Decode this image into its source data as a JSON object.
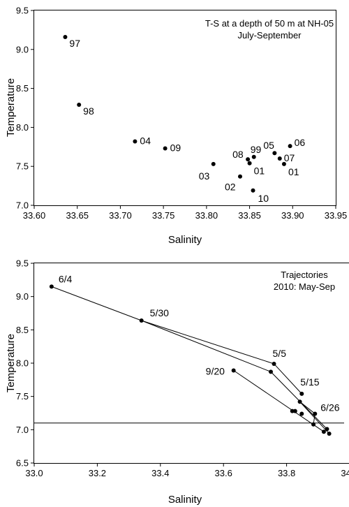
{
  "chart_data": [
    {
      "type": "scatter",
      "annotation_lines": [
        "T-S at a depth of 50 m at NH-05",
        "July-September"
      ],
      "xlabel": "Salinity",
      "ylabel": "Temperature",
      "xlim": [
        33.6,
        33.95
      ],
      "ylim": [
        7.0,
        9.5
      ],
      "xticks": [
        "33.60",
        "33.65",
        "33.70",
        "33.75",
        "33.80",
        "33.85",
        "33.90",
        "33.95"
      ],
      "yticks": [
        "7.0",
        "7.5",
        "8.0",
        "8.5",
        "9.0",
        "9.5"
      ],
      "grid": false,
      "points": [
        {
          "label": "97",
          "x": 33.636,
          "y": 9.16
        },
        {
          "label": "98",
          "x": 33.652,
          "y": 8.29
        },
        {
          "label": "04",
          "x": 33.717,
          "y": 7.82
        },
        {
          "label": "09",
          "x": 33.752,
          "y": 7.73
        },
        {
          "label": "03",
          "x": 33.808,
          "y": 7.53
        },
        {
          "label": "02",
          "x": 33.839,
          "y": 7.37
        },
        {
          "label": "10",
          "x": 33.854,
          "y": 7.19
        },
        {
          "label": "08",
          "x": 33.848,
          "y": 7.59
        },
        {
          "label": "01",
          "x": 33.85,
          "y": 7.54
        },
        {
          "label": "99",
          "x": 33.855,
          "y": 7.62
        },
        {
          "label": "05",
          "x": 33.879,
          "y": 7.67
        },
        {
          "label": "07",
          "x": 33.885,
          "y": 7.6
        },
        {
          "label": "01",
          "x": 33.89,
          "y": 7.53
        },
        {
          "label": "06",
          "x": 33.897,
          "y": 7.76
        }
      ]
    },
    {
      "type": "line",
      "annotation_lines": [
        "Trajectories",
        "2010: May-Sep"
      ],
      "xlabel": "Salinity",
      "ylabel": "Temperature",
      "xlim": [
        33.0,
        34.0
      ],
      "ylim": [
        6.5,
        9.5
      ],
      "xticks": [
        "33.0",
        "33.2",
        "33.4",
        "33.6",
        "33.8",
        "34.0"
      ],
      "yticks": [
        "6.5",
        "7.0",
        "7.5",
        "8.0",
        "8.5",
        "9.0",
        "9.5"
      ],
      "grid": false,
      "reference_line_y": 7.1,
      "points": [
        {
          "x": 33.055,
          "y": 9.15
        },
        {
          "x": 33.34,
          "y": 8.64
        },
        {
          "x": 33.76,
          "y": 7.99
        },
        {
          "x": 33.75,
          "y": 7.87
        },
        {
          "x": 33.632,
          "y": 7.89
        },
        {
          "x": 33.848,
          "y": 7.54
        },
        {
          "x": 33.842,
          "y": 7.42
        },
        {
          "x": 33.89,
          "y": 7.24
        },
        {
          "x": 33.818,
          "y": 7.28
        },
        {
          "x": 33.827,
          "y": 7.28
        },
        {
          "x": 33.848,
          "y": 7.24
        },
        {
          "x": 33.885,
          "y": 7.08
        },
        {
          "x": 33.918,
          "y": 6.97
        },
        {
          "x": 33.928,
          "y": 7.01
        },
        {
          "x": 33.935,
          "y": 6.94
        }
      ],
      "segments": [
        [
          0,
          1
        ],
        [
          1,
          2
        ],
        [
          1,
          3
        ],
        [
          2,
          5
        ],
        [
          3,
          13
        ],
        [
          4,
          12
        ],
        [
          6,
          7
        ],
        [
          6,
          14
        ],
        [
          7,
          11
        ],
        [
          8,
          9
        ]
      ],
      "date_labels": [
        {
          "text": "6/4",
          "x": 33.055,
          "y": 9.15
        },
        {
          "text": "5/30",
          "x": 33.34,
          "y": 8.64
        },
        {
          "text": "5/5",
          "x": 33.76,
          "y": 7.99
        },
        {
          "text": "9/20",
          "x": 33.632,
          "y": 7.89
        },
        {
          "text": "5/15",
          "x": 33.848,
          "y": 7.54
        },
        {
          "text": "6/26",
          "x": 33.89,
          "y": 7.24
        }
      ]
    }
  ]
}
